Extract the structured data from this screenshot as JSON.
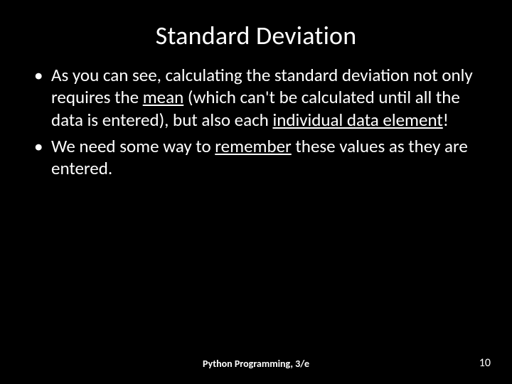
{
  "slide": {
    "title": "Standard Deviation",
    "bullets": [
      {
        "pre1": "As you can see, calculating the standard deviation not only requires the ",
        "u1": "mean",
        "mid1": " (which can't be calculated until all the data is entered), but also each ",
        "u2": "individual data element",
        "post1": "!"
      },
      {
        "pre1": "We need some way to ",
        "u1": "remember",
        "mid1": " these values as they are entered.",
        "u2": "",
        "post1": ""
      }
    ],
    "footer_center": "Python Programming, 3/e",
    "page_number": "10"
  },
  "colors": {
    "background": "#000000",
    "text": "#ffffff"
  }
}
